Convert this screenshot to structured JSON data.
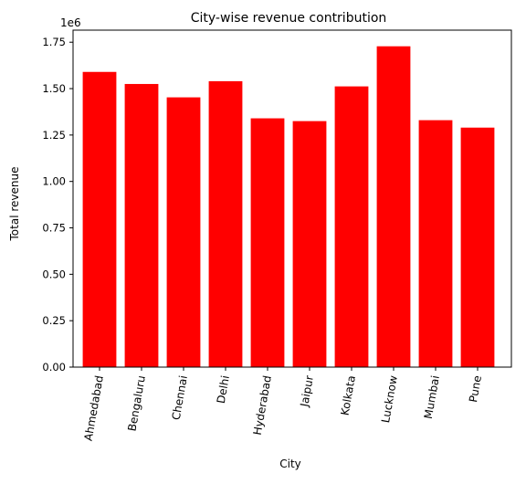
{
  "chart_data": {
    "type": "bar",
    "title": "City-wise revenue contribution",
    "xlabel": "City",
    "ylabel": "Total revenue",
    "y_offset_label": "1e6",
    "categories": [
      "Ahmedabad",
      "Bengaluru",
      "Chennai",
      "Delhi",
      "Hyderabad",
      "Jaipur",
      "Kolkata",
      "Lucknow",
      "Mumbai",
      "Pune"
    ],
    "values": [
      1590000,
      1525000,
      1453000,
      1540000,
      1340000,
      1325000,
      1512000,
      1728000,
      1330000,
      1290000
    ],
    "ylim": [
      0,
      1815000
    ],
    "yticks": [
      0,
      250000,
      500000,
      750000,
      1000000,
      1250000,
      1500000,
      1750000
    ],
    "ytick_labels": [
      "0.00",
      "0.25",
      "0.50",
      "0.75",
      "1.00",
      "1.25",
      "1.50",
      "1.75"
    ],
    "bar_color": "#ff0000",
    "grid": false,
    "legend": "none"
  }
}
